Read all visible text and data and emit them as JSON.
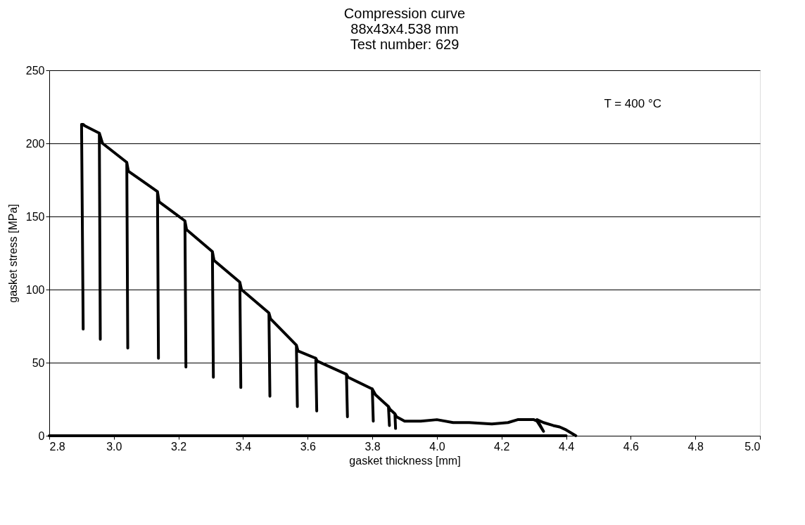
{
  "chart_data": {
    "type": "line",
    "title": [
      "Compression curve",
      " 88x43x4.538  mm",
      "Test number:  629"
    ],
    "xlabel": "gasket thickness [mm]",
    "ylabel": "gasket stress [MPa]",
    "annotations": [
      "T = 400 °C"
    ],
    "xlim": [
      2.8,
      5.0
    ],
    "xticks": [
      2.8,
      {
        "value": 3.0,
        "label": "3.0"
      },
      3.2,
      3.4,
      3.6,
      3.8,
      {
        "value": 4.0,
        "label": "4.0"
      },
      4.2,
      4.4,
      4.6,
      4.8,
      {
        "value": 5.0,
        "label": "5.0"
      }
    ],
    "ylim": [
      0,
      250
    ],
    "yticks": [
      0,
      50,
      100,
      150,
      200,
      250
    ],
    "grid": "y",
    "marker": "none",
    "line_style": "solid",
    "series": [
      {
        "color": "#000000",
        "x": [
          4.43,
          4.4,
          4.38,
          4.36,
          4.33,
          4.31,
          4.33,
          4.31,
          4.3,
          4.25,
          4.22,
          4.17,
          4.1,
          4.05,
          4.0,
          3.95,
          3.9,
          3.875,
          3.87,
          3.872,
          3.87,
          3.855,
          3.85,
          3.853,
          3.85,
          3.81,
          3.8,
          3.803,
          3.8,
          3.725,
          3.72,
          3.723,
          3.72,
          3.63,
          3.625,
          3.628,
          3.625,
          3.57,
          3.565,
          3.568,
          3.565,
          3.485,
          3.48,
          3.483,
          3.48,
          3.395,
          3.39,
          3.393,
          3.39,
          3.31,
          3.305,
          3.308,
          3.305,
          3.225,
          3.22,
          3.223,
          3.22,
          3.14,
          3.135,
          3.138,
          3.135,
          3.045,
          3.04,
          3.043,
          3.04,
          2.965,
          2.955,
          2.958,
          2.955,
          2.91,
          2.905,
          2.9,
          2.905
        ],
        "values": [
          0,
          4,
          6,
          7,
          9,
          11,
          3,
          10,
          11,
          11,
          9,
          8,
          9,
          9,
          11,
          10,
          10,
          13,
          15,
          5,
          15,
          18,
          20,
          7,
          20,
          28,
          32,
          10,
          32,
          40,
          42,
          13,
          42,
          51,
          53,
          17,
          53,
          58,
          62,
          20,
          62,
          80,
          84,
          27,
          84,
          100,
          105,
          33,
          105,
          120,
          126,
          40,
          126,
          141,
          147,
          47,
          147,
          160,
          167,
          53,
          167,
          181,
          187,
          60,
          187,
          200,
          207,
          66,
          207,
          212,
          213,
          213,
          73
        ]
      },
      {
        "color": "#000000",
        "x": [
          2.8,
          3.6,
          4.4
        ],
        "values": [
          0,
          0,
          0
        ]
      }
    ]
  }
}
